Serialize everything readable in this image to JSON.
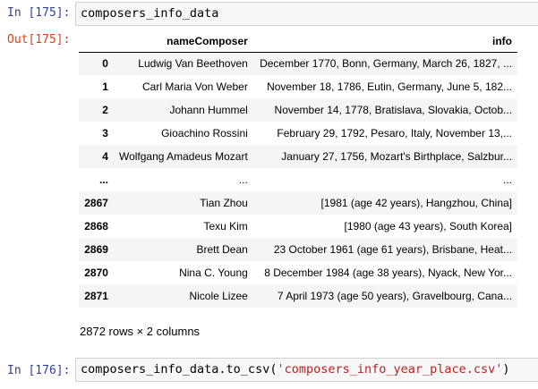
{
  "cells": {
    "out_cell": {
      "in_prompt": "In [175]:",
      "code": "composers_info_data",
      "out_prompt": "Out[175]:"
    },
    "next_cell": {
      "in_prompt": "In [176]:",
      "code_prefix": "composers_info_data.to_csv(",
      "code_string": "'composers_info_year_place.csv'",
      "code_suffix": ")"
    }
  },
  "table": {
    "columns": [
      "nameComposer",
      "info"
    ],
    "rows": [
      {
        "index": "0",
        "name": "Ludwig Van Beethoven",
        "info": "December 1770, Bonn, Germany, March 26, 1827, ..."
      },
      {
        "index": "1",
        "name": "Carl Maria Von Weber",
        "info": "November 18, 1786, Eutin, Germany, June 5, 182..."
      },
      {
        "index": "2",
        "name": "Johann Hummel",
        "info": "November 14, 1778, Bratislava, Slovakia, Octob..."
      },
      {
        "index": "3",
        "name": "Gioachino Rossini",
        "info": "February 29, 1792, Pesaro, Italy, November 13,..."
      },
      {
        "index": "4",
        "name": "Wolfgang Amadeus Mozart",
        "info": "January 27, 1756, Mozart's Birthplace, Salzbur..."
      },
      {
        "index": "...",
        "name": "...",
        "info": "..."
      },
      {
        "index": "2867",
        "name": "Tian Zhou",
        "info": "[1981 (age 42 years), Hangzhou, China]"
      },
      {
        "index": "2868",
        "name": "Texu Kim",
        "info": "[1980 (age 43 years), South Korea]"
      },
      {
        "index": "2869",
        "name": "Brett Dean",
        "info": "23 October 1961 (age 61 years), Brisbane, Heat..."
      },
      {
        "index": "2870",
        "name": "Nina C. Young",
        "info": "8 December 1984 (age 38 years), Nyack, New Yor..."
      },
      {
        "index": "2871",
        "name": "Nicole Lizee",
        "info": "7 April 1973 (age 50 years), Gravelbourg, Cana..."
      }
    ],
    "shape": "2872 rows × 2 columns"
  }
}
